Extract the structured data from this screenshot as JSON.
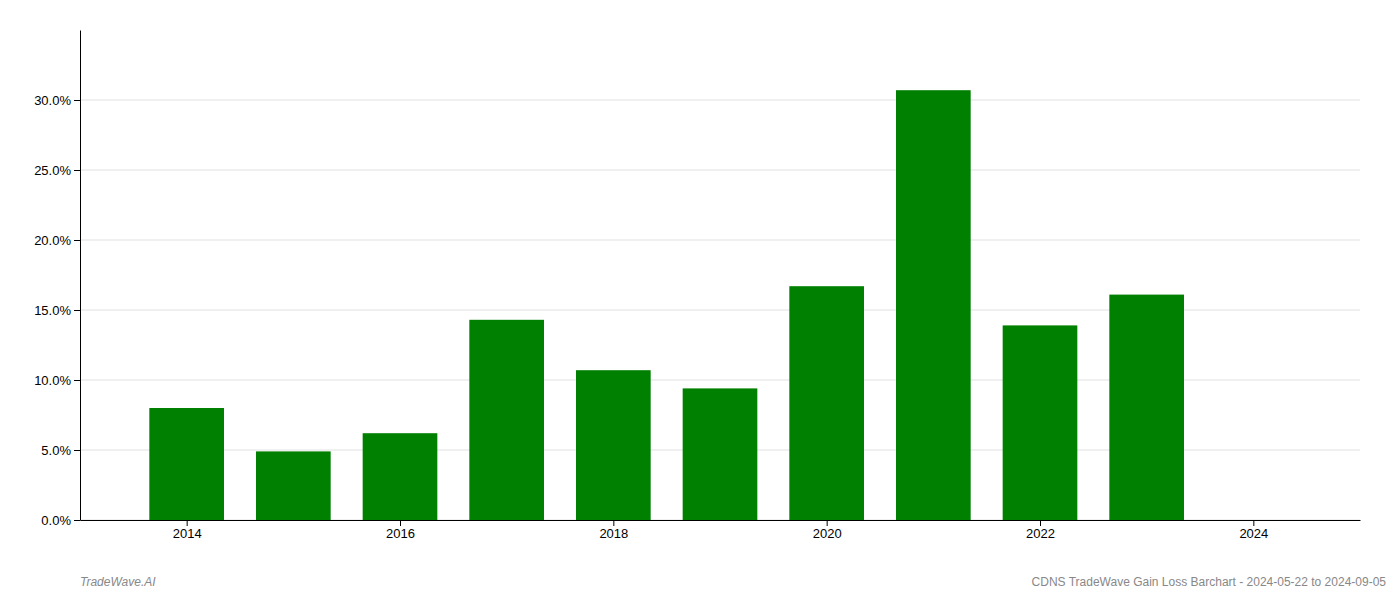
{
  "chart_data": {
    "type": "bar",
    "x": [
      2014,
      2015,
      2016,
      2017,
      2018,
      2019,
      2020,
      2021,
      2022,
      2023
    ],
    "values": [
      0.08,
      0.049,
      0.062,
      0.143,
      0.107,
      0.094,
      0.167,
      0.307,
      0.139,
      0.161
    ],
    "color": "#008000",
    "xlim": [
      2013.0,
      2025.0
    ],
    "xticks": [
      2014,
      2016,
      2018,
      2020,
      2022,
      2024
    ],
    "ylim": [
      0,
      0.35
    ],
    "yticks": [
      {
        "value": 0.0,
        "label": "0.0%"
      },
      {
        "value": 0.05,
        "label": "5.0%"
      },
      {
        "value": 0.1,
        "label": "10.0%"
      },
      {
        "value": 0.15,
        "label": "15.0%"
      },
      {
        "value": 0.2,
        "label": "20.0%"
      },
      {
        "value": 0.25,
        "label": "25.0%"
      },
      {
        "value": 0.3,
        "label": "30.0%"
      }
    ],
    "grid": true,
    "annotations": [
      "TradeWave.AI",
      "CDNS TradeWave Gain Loss Barchart - 2024-05-22 to 2024-09-05"
    ]
  }
}
